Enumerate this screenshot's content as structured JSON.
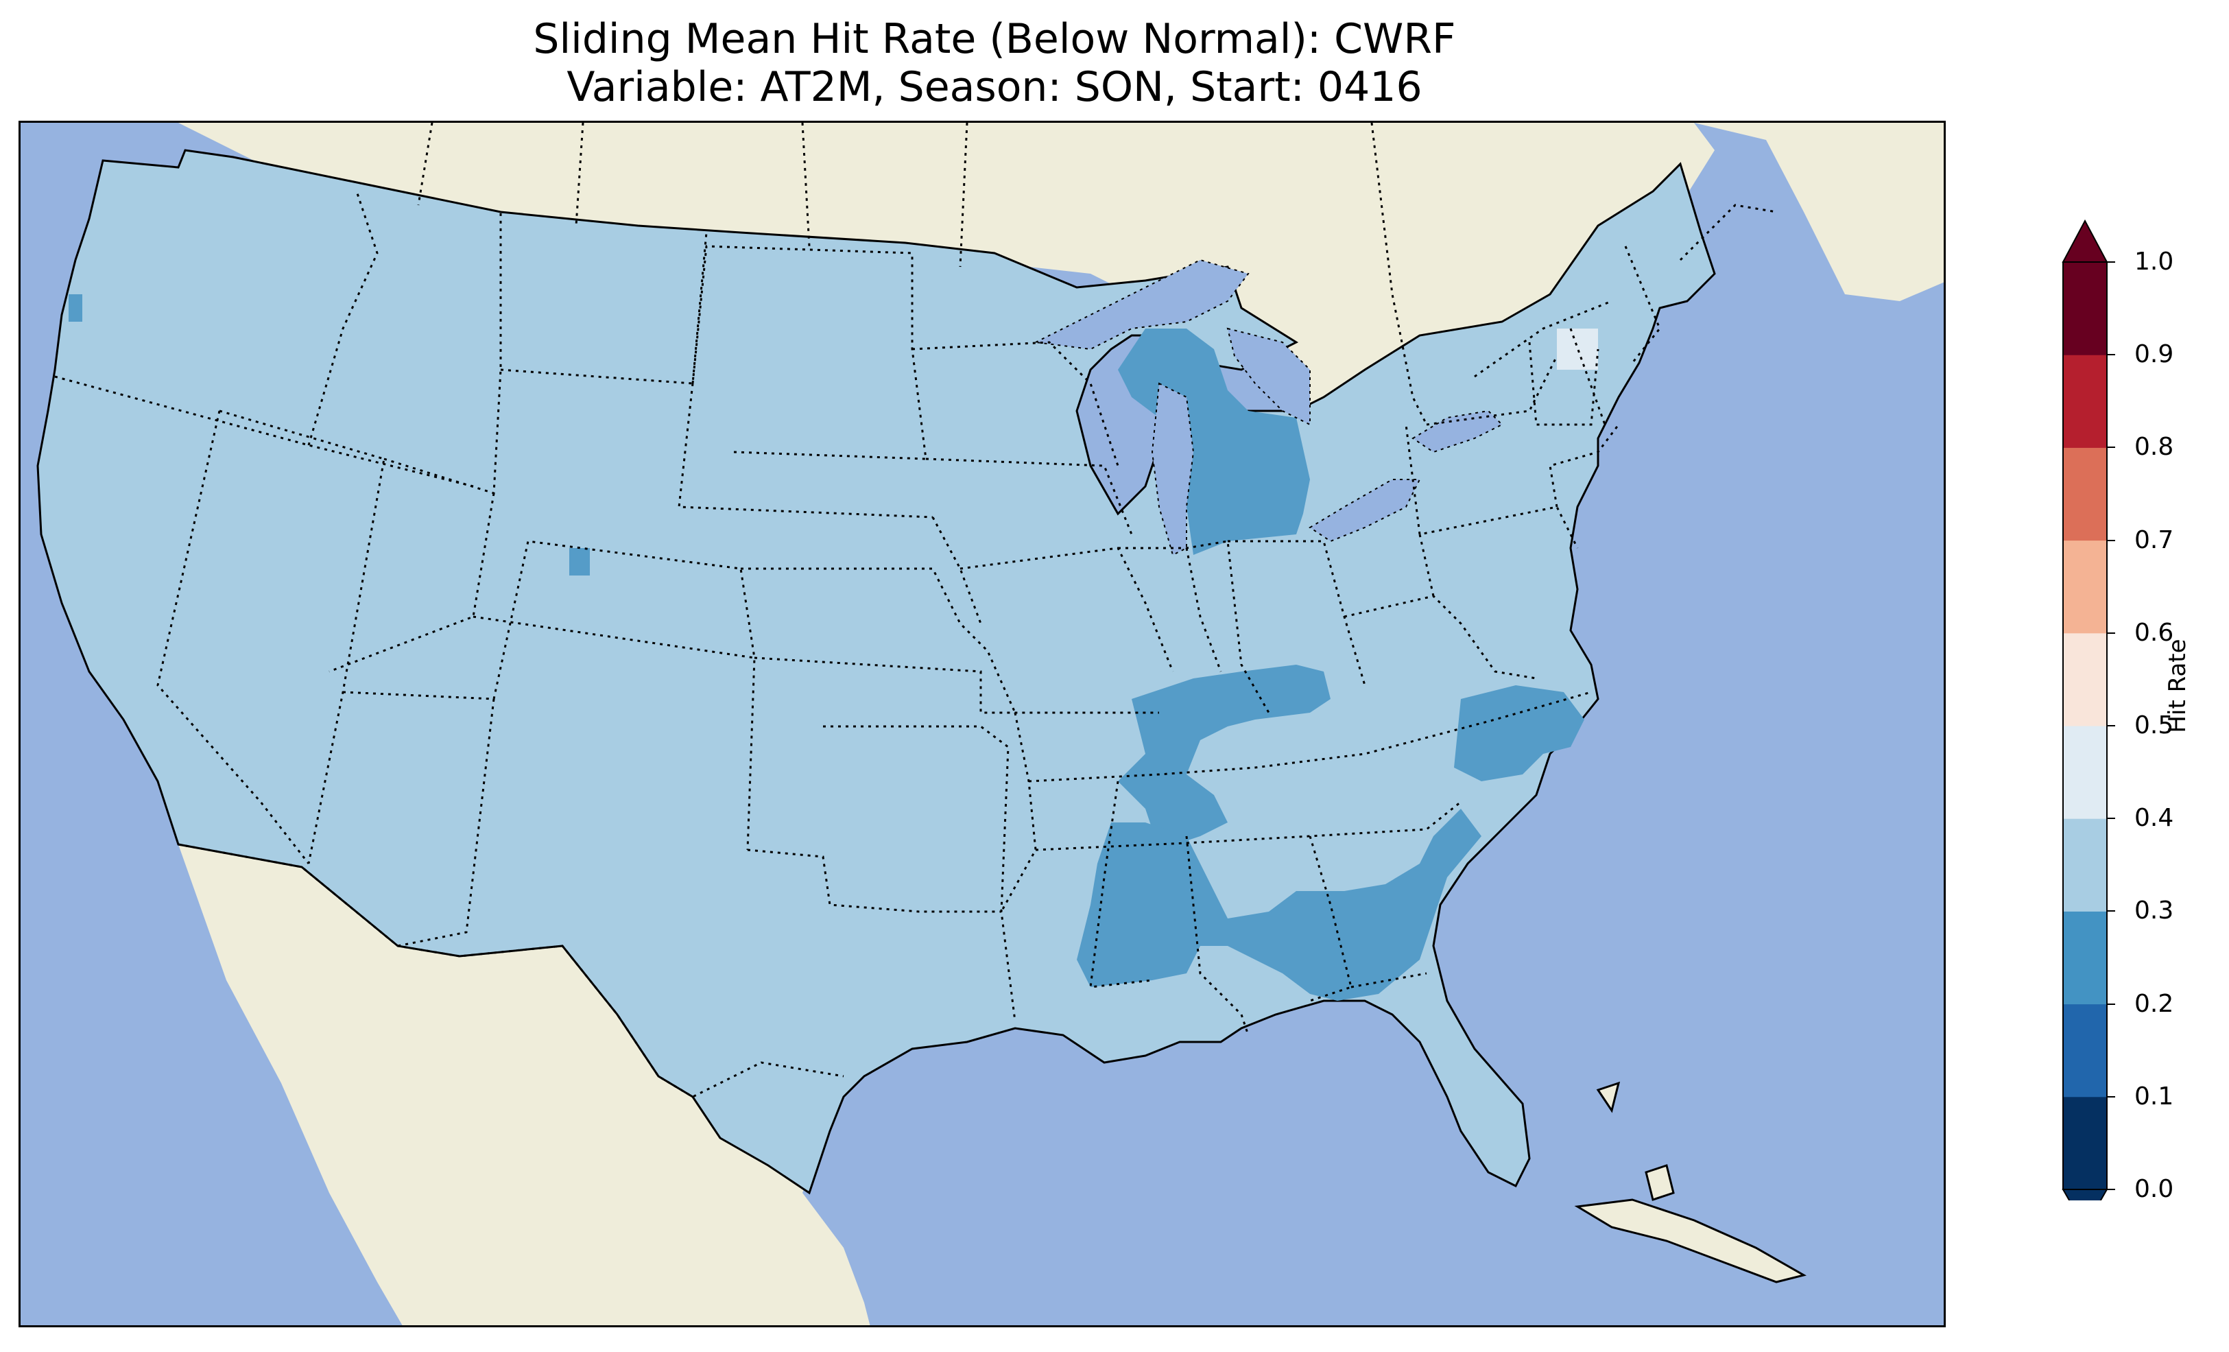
{
  "title_line1": "Sliding Mean Hit Rate (Below Normal): CWRF",
  "title_line2": "Variable: AT2M, Season: SON, Start: 0416",
  "colors": {
    "ocean": "#96b3e0",
    "land": "#efedda",
    "bin_02_03": "#559cc8",
    "bin_03_04": "#a8cde3",
    "bin_04_05": "#e0ebf3"
  },
  "colorbar": {
    "label": "Hit Rate",
    "ticks": [
      "0.0",
      "0.1",
      "0.2",
      "0.3",
      "0.4",
      "0.5",
      "0.6",
      "0.7",
      "0.8",
      "0.9",
      "1.0"
    ],
    "bins": [
      {
        "from": 0.0,
        "to": 0.1,
        "color": "#053061"
      },
      {
        "from": 0.1,
        "to": 0.2,
        "color": "#2166ac"
      },
      {
        "from": 0.2,
        "to": 0.3,
        "color": "#4393c3"
      },
      {
        "from": 0.3,
        "to": 0.4,
        "color": "#a8cde3"
      },
      {
        "from": 0.4,
        "to": 0.5,
        "color": "#e0ebf3"
      },
      {
        "from": 0.5,
        "to": 0.6,
        "color": "#f9e5da"
      },
      {
        "from": 0.6,
        "to": 0.7,
        "color": "#f4b394"
      },
      {
        "from": 0.7,
        "to": 0.8,
        "color": "#dc6f58"
      },
      {
        "from": 0.8,
        "to": 0.9,
        "color": "#b51f2e"
      },
      {
        "from": 0.9,
        "to": 1.0,
        "color": "#670020"
      }
    ],
    "extend_under_color": "#053061",
    "extend_over_color": "#670020"
  },
  "map": {
    "domain_mean_range": "0.3-0.4",
    "low_regions": [
      "Michigan",
      "Tennessee Valley",
      "Mississippi / Alabama / Georgia",
      "North Carolina",
      "South Carolina"
    ]
  }
}
